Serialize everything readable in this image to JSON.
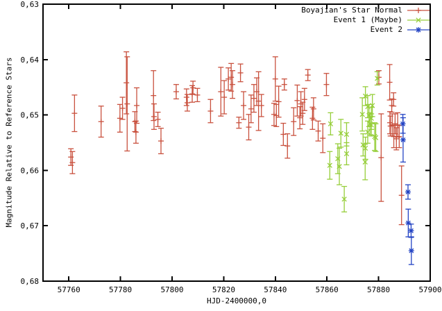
{
  "figure": {
    "background": "#ffffff",
    "text_color": "#000000",
    "frame_color": "#000000"
  },
  "chart_data": {
    "type": "scatter",
    "title": "",
    "xlabel": "HJD-2400000,0",
    "ylabel": "Magnitude Relative to Reference Stars",
    "x_range": [
      57750,
      57900
    ],
    "y_range": [
      0.68,
      0.63
    ],
    "y_axis_inverted": true,
    "grid": false,
    "legend_position": "top-right-inside",
    "x_ticks": [
      57760,
      57780,
      57800,
      57820,
      57840,
      57860,
      57880,
      57900
    ],
    "x_tick_labels": [
      "57760",
      "57780",
      "57800",
      "57820",
      "57840",
      "57860",
      "57880",
      "57900"
    ],
    "y_ticks": [
      0.63,
      0.64,
      0.65,
      0.66,
      0.67,
      0.68
    ],
    "y_tick_labels": [
      "0,63",
      "0,64",
      "0,65",
      "0,66",
      "0,67",
      "0,68"
    ],
    "series": [
      {
        "name": "Boyajian's Star Normal",
        "color": "#c9513e",
        "marker": "plus",
        "points_format": [
          "hjd_minus_2400000",
          "magnitude",
          "error"
        ],
        "points": [
          [
            57760.8,
            0.6576,
            0.0015
          ],
          [
            57761.4,
            0.6586,
            0.002
          ],
          [
            57762.2,
            0.6497,
            0.0033
          ],
          [
            57772.5,
            0.6512,
            0.0028
          ],
          [
            57779.8,
            0.6506,
            0.0025
          ],
          [
            57780.8,
            0.6488,
            0.002
          ],
          [
            57782.3,
            0.6442,
            0.0056
          ],
          [
            57782.6,
            0.648,
            0.0085
          ],
          [
            57785.6,
            0.6512,
            0.0018
          ],
          [
            57786.0,
            0.6531,
            0.002
          ],
          [
            57786.3,
            0.6483,
            0.0032
          ],
          [
            57792.8,
            0.6465,
            0.0045
          ],
          [
            57793.0,
            0.6503,
            0.0023
          ],
          [
            57794.5,
            0.6508,
            0.0013
          ],
          [
            57795.7,
            0.6547,
            0.0023
          ],
          [
            57801.6,
            0.6458,
            0.0013
          ],
          [
            57805.6,
            0.6468,
            0.0015
          ],
          [
            57805.9,
            0.6478,
            0.0015
          ],
          [
            57807.8,
            0.6462,
            0.0015
          ],
          [
            57808.1,
            0.6451,
            0.0012
          ],
          [
            57809.8,
            0.6464,
            0.0012
          ],
          [
            57814.9,
            0.6493,
            0.0021
          ],
          [
            57818.9,
            0.6458,
            0.0044
          ],
          [
            57820.2,
            0.6468,
            0.003
          ],
          [
            57821.8,
            0.6435,
            0.002
          ],
          [
            57822.9,
            0.6432,
            0.0025
          ],
          [
            57823.4,
            0.6445,
            0.0025
          ],
          [
            57825.9,
            0.6514,
            0.001
          ],
          [
            57826.5,
            0.6424,
            0.0016
          ],
          [
            57827.7,
            0.6483,
            0.0025
          ],
          [
            57829.7,
            0.6522,
            0.0023
          ],
          [
            57830.6,
            0.6489,
            0.0025
          ],
          [
            57831.7,
            0.647,
            0.0025
          ],
          [
            57832.8,
            0.6458,
            0.0025
          ],
          [
            57833.5,
            0.6475,
            0.0053
          ],
          [
            57834.6,
            0.6483,
            0.002
          ],
          [
            57839.5,
            0.6499,
            0.002
          ],
          [
            57840.0,
            0.6435,
            0.004
          ],
          [
            57840.4,
            0.6501,
            0.002
          ],
          [
            57841.3,
            0.6476,
            0.0028
          ],
          [
            57843.1,
            0.6535,
            0.002
          ],
          [
            57843.5,
            0.6445,
            0.001
          ],
          [
            57844.7,
            0.6556,
            0.0022
          ],
          [
            57847.1,
            0.6512,
            0.0025
          ],
          [
            57848.5,
            0.6474,
            0.0028
          ],
          [
            57849.5,
            0.6505,
            0.002
          ],
          [
            57849.9,
            0.648,
            0.0022
          ],
          [
            57850.6,
            0.6497,
            0.002
          ],
          [
            57851.3,
            0.6472,
            0.002
          ],
          [
            57852.6,
            0.6428,
            0.001
          ],
          [
            57854.4,
            0.6506,
            0.002
          ],
          [
            57854.8,
            0.6489,
            0.002
          ],
          [
            57856.6,
            0.6529,
            0.0018
          ],
          [
            57858.4,
            0.6542,
            0.0026
          ],
          [
            57859.8,
            0.6445,
            0.002
          ],
          [
            57880.1,
            0.6432,
            0.0012
          ],
          [
            57881.0,
            0.6577,
            0.0079
          ],
          [
            57884.3,
            0.6441,
            0.0032
          ],
          [
            57884.4,
            0.6514,
            0.002
          ],
          [
            57884.6,
            0.652,
            0.0018
          ],
          [
            57885.1,
            0.6483,
            0.0012
          ],
          [
            57885.3,
            0.6518,
            0.002
          ],
          [
            57885.8,
            0.6472,
            0.0012
          ],
          [
            57885.9,
            0.6539,
            0.002
          ],
          [
            57886.4,
            0.6516,
            0.0018
          ],
          [
            57886.9,
            0.6543,
            0.002
          ],
          [
            57887.4,
            0.6518,
            0.0022
          ],
          [
            57888.0,
            0.6539,
            0.002
          ],
          [
            57888.9,
            0.6645,
            0.0053
          ]
        ]
      },
      {
        "name": "Event 1 (Maybe)",
        "color": "#96ce3a",
        "marker": "cross",
        "points_format": [
          "hjd_minus_2400000",
          "magnitude",
          "error"
        ],
        "points": [
          [
            57861.1,
            0.6591,
            0.0025
          ],
          [
            57861.4,
            0.6516,
            0.002
          ],
          [
            57864.2,
            0.6579,
            0.0027
          ],
          [
            57864.8,
            0.6593,
            0.0033
          ],
          [
            57865.4,
            0.6533,
            0.0025
          ],
          [
            57866.7,
            0.6652,
            0.0023
          ],
          [
            57867.6,
            0.6535,
            0.0021
          ],
          [
            57867.6,
            0.657,
            0.002
          ],
          [
            57873.7,
            0.6499,
            0.003
          ],
          [
            57874.0,
            0.6554,
            0.002
          ],
          [
            57874.8,
            0.6585,
            0.0032
          ],
          [
            57874.9,
            0.6466,
            0.0017
          ],
          [
            57874.9,
            0.656,
            0.002
          ],
          [
            57875.8,
            0.6485,
            0.002
          ],
          [
            57875.8,
            0.6531,
            0.002
          ],
          [
            57876.3,
            0.6501,
            0.002
          ],
          [
            57876.7,
            0.6516,
            0.002
          ],
          [
            57877.2,
            0.6506,
            0.002
          ],
          [
            57877.2,
            0.6518,
            0.002
          ],
          [
            57877.6,
            0.6483,
            0.002
          ],
          [
            57878.5,
            0.6539,
            0.0025
          ],
          [
            57878.9,
            0.6541,
            0.0025
          ],
          [
            57879.5,
            0.6434,
            0.0012
          ]
        ]
      },
      {
        "name": "Event 2",
        "color": "#2444c4",
        "marker": "asterisk",
        "points_format": [
          "hjd_minus_2400000",
          "magnitude",
          "error"
        ],
        "points": [
          [
            57889.4,
            0.6516,
            0.0017
          ],
          [
            57889.5,
            0.6545,
            0.004
          ],
          [
            57891.4,
            0.6639,
            0.0013
          ],
          [
            57891.5,
            0.6695,
            0.0025
          ],
          [
            57892.6,
            0.6709,
            0.0012
          ],
          [
            57892.7,
            0.6745,
            0.0025
          ]
        ]
      }
    ]
  }
}
